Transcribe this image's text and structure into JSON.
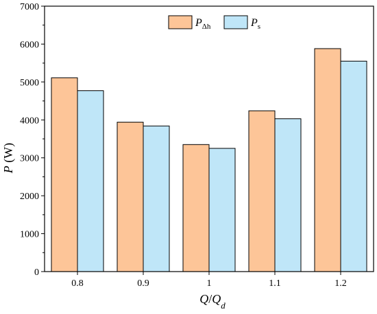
{
  "chart_data": {
    "type": "bar",
    "categories": [
      "0.8",
      "0.9",
      "1",
      "1.1",
      "1.2"
    ],
    "series": [
      {
        "name_main": "P",
        "name_sub": "Δh",
        "color": "#FDC598",
        "values": [
          5110,
          3940,
          3350,
          4240,
          5880
        ]
      },
      {
        "name_main": "P",
        "name_sub": "s",
        "color": "#BFE6F8",
        "values": [
          4770,
          3840,
          3250,
          4030,
          5550
        ]
      }
    ],
    "ylim": [
      0,
      7000
    ],
    "yticks": [
      "0",
      "1000",
      "2000",
      "3000",
      "4000",
      "5000",
      "6000",
      "7000"
    ],
    "ylabel_main": "P",
    "ylabel_unit": " (W)",
    "xlabel_main": "Q",
    "xlabel_slash": "/",
    "xlabel_main2": "Q",
    "xlabel_sub": "d",
    "legend_position": "top-center"
  }
}
